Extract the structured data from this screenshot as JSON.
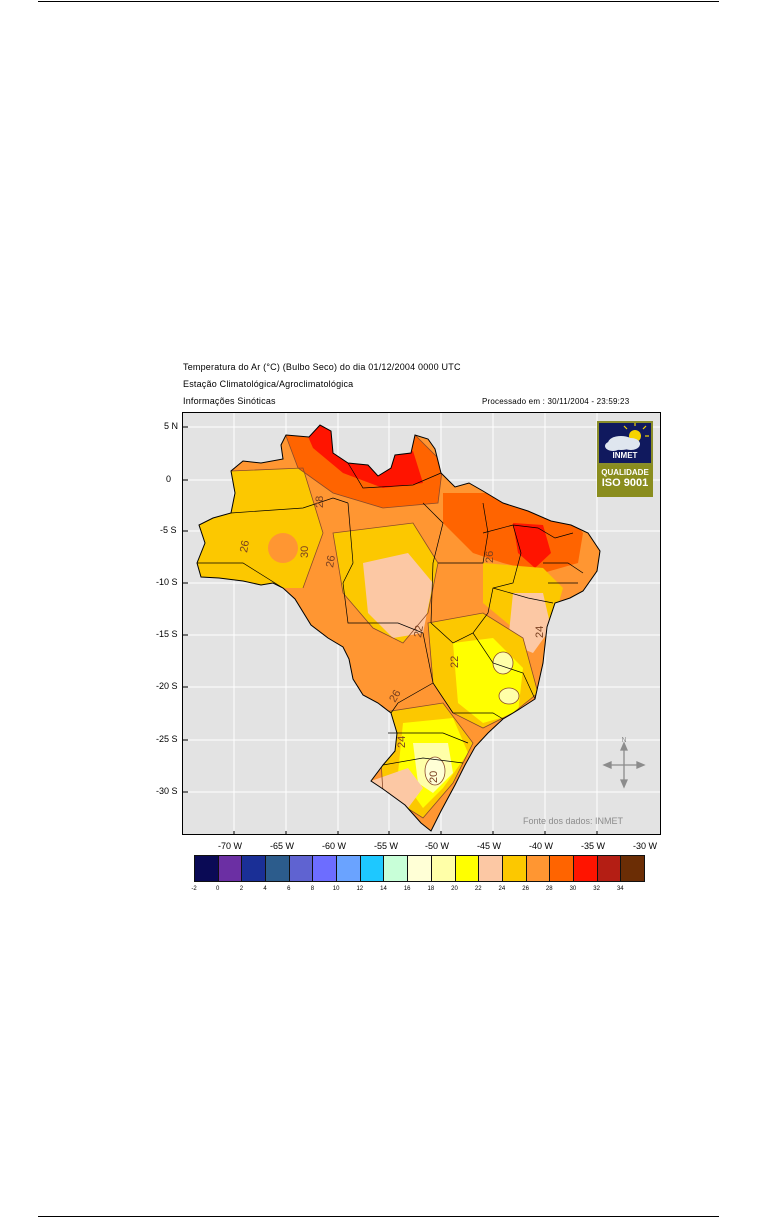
{
  "header": {
    "title": "Temperatura do Ar (°C) (Bulbo Seco) do dia 01/12/2004 0000 UTC",
    "line2": "Estação Climatológica/Agroclimatológica",
    "line3": "Informações Sinóticas",
    "processed": "Processado em : 30/11/2004 - 23:59:23"
  },
  "map": {
    "lat_labels": [
      "5 N",
      "0",
      "-5 S",
      "-10 S",
      "-15 S",
      "-20 S",
      "-25 S",
      "-30 S"
    ],
    "lon_labels": [
      "-70 W",
      "-65 W",
      "-60 W",
      "-55 W",
      "-50 W",
      "-45 W",
      "-40 W",
      "-35 W",
      "-30 W"
    ],
    "contour_labels": [
      "28",
      "26",
      "26",
      "30",
      "22",
      "22",
      "26",
      "26",
      "24",
      "20",
      "24"
    ],
    "source": "Fonte dos dados: INMET",
    "background_color": "#e3e3e3",
    "compass": "compass-rose-icon"
  },
  "logo": {
    "name": "INMET",
    "line1": "QUALIDADE",
    "line2": "ISO 9001"
  },
  "legend": {
    "colors": [
      "#0a0a55",
      "#6b2fa3",
      "#1a2f96",
      "#2c5c8c",
      "#5f63d1",
      "#6d6dff",
      "#6aa3ff",
      "#1ec8ff",
      "#c8ffd8",
      "#ffffd6",
      "#ffffa8",
      "#ffff00",
      "#fcc8a4",
      "#fcc800",
      "#ff9632",
      "#ff6400",
      "#ff1400",
      "#b41e14",
      "#6b2d05"
    ],
    "labels": [
      "-2",
      "0",
      "2",
      "4",
      "6",
      "8",
      "10",
      "12",
      "14",
      "16",
      "18",
      "20",
      "22",
      "24",
      "26",
      "28",
      "30",
      "32",
      "34"
    ]
  }
}
